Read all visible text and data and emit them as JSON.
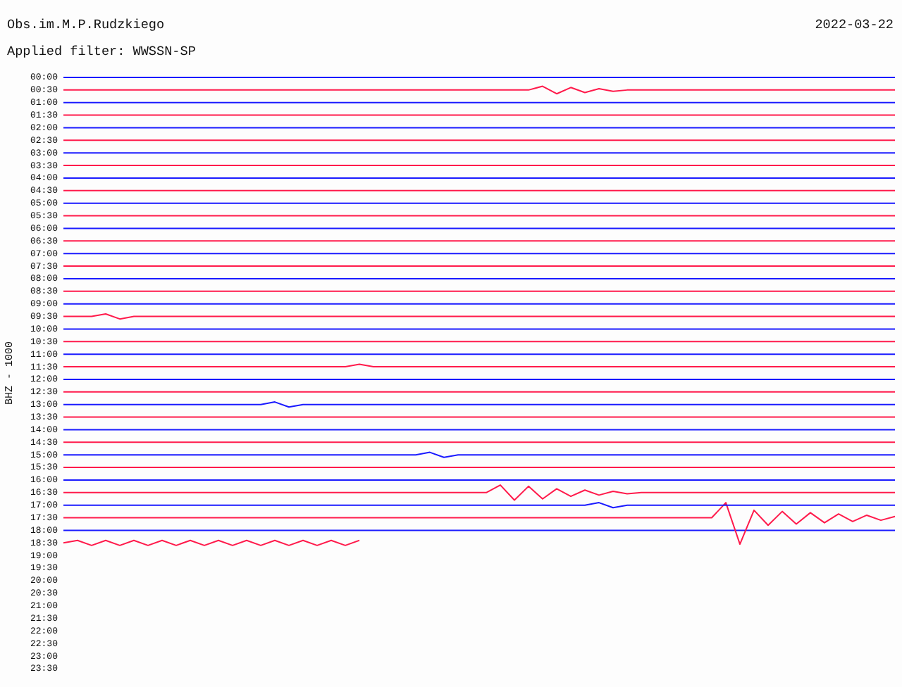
{
  "chart_data": {
    "type": "line",
    "title": "Obs.im.M.P.Rudzkiego",
    "subtitle": "Applied filter: WWSSN-SP",
    "ylabel": "BHZ - 1000",
    "annotations": [
      "2022-03-22"
    ],
    "categories": [
      null,
      null,
      null,
      null,
      null,
      null,
      null,
      null,
      null,
      null,
      null,
      null,
      null,
      null,
      null,
      null,
      null,
      null,
      null,
      null,
      null,
      null,
      null,
      null,
      null,
      null,
      null,
      null,
      null,
      null,
      null,
      null,
      null,
      null,
      null,
      null,
      null,
      null,
      null,
      null,
      null,
      null,
      null,
      null,
      null,
      null,
      null,
      null,
      null,
      null,
      null,
      null,
      null,
      null,
      null,
      null,
      null,
      null,
      null,
      null
    ],
    "ylim": [
      23.5,
      0
    ],
    "yticks": [
      {
        "value": 0,
        "label": "00:00"
      },
      {
        "value": 0.5,
        "label": "00:30"
      },
      {
        "value": 1,
        "label": "01:00"
      },
      {
        "value": 1.5,
        "label": "01:30"
      },
      {
        "value": 2,
        "label": "02:00"
      },
      {
        "value": 2.5,
        "label": "02:30"
      },
      {
        "value": 3,
        "label": "03:00"
      },
      {
        "value": 3.5,
        "label": "03:30"
      },
      {
        "value": 4,
        "label": "04:00"
      },
      {
        "value": 4.5,
        "label": "04:30"
      },
      {
        "value": 5,
        "label": "05:00"
      },
      {
        "value": 5.5,
        "label": "05:30"
      },
      {
        "value": 6,
        "label": "06:00"
      },
      {
        "value": 6.5,
        "label": "06:30"
      },
      {
        "value": 7,
        "label": "07:00"
      },
      {
        "value": 7.5,
        "label": "07:30"
      },
      {
        "value": 8,
        "label": "08:00"
      },
      {
        "value": 8.5,
        "label": "08:30"
      },
      {
        "value": 9,
        "label": "09:00"
      },
      {
        "value": 9.5,
        "label": "09:30"
      },
      {
        "value": 10,
        "label": "10:00"
      },
      {
        "value": 10.5,
        "label": "10:30"
      },
      {
        "value": 11,
        "label": "11:00"
      },
      {
        "value": 11.5,
        "label": "11:30"
      },
      {
        "value": 12,
        "label": "12:00"
      },
      {
        "value": 12.5,
        "label": "12:30"
      },
      {
        "value": 13,
        "label": "13:00"
      },
      {
        "value": 13.5,
        "label": "13:30"
      },
      {
        "value": 14,
        "label": "14:00"
      },
      {
        "value": 14.5,
        "label": "14:30"
      },
      {
        "value": 15,
        "label": "15:00"
      },
      {
        "value": 15.5,
        "label": "15:30"
      },
      {
        "value": 16,
        "label": "16:00"
      },
      {
        "value": 16.5,
        "label": "16:30"
      },
      {
        "value": 17,
        "label": "17:00"
      },
      {
        "value": 17.5,
        "label": "17:30"
      },
      {
        "value": 18,
        "label": "18:00"
      },
      {
        "value": 18.5,
        "label": "18:30"
      },
      {
        "value": 19,
        "label": "19:00"
      },
      {
        "value": 19.5,
        "label": "19:30"
      },
      {
        "value": 20,
        "label": "20:00"
      },
      {
        "value": 20.5,
        "label": "20:30"
      },
      {
        "value": 21,
        "label": "21:00"
      },
      {
        "value": 21.5,
        "label": "21:30"
      },
      {
        "value": 22,
        "label": "22:00"
      },
      {
        "value": 22.5,
        "label": "22:30"
      },
      {
        "value": 23,
        "label": "23:00"
      },
      {
        "value": 23.5,
        "label": "23:30"
      }
    ],
    "tick_labels": "y",
    "grid": false,
    "legend": false,
    "series": [
      {
        "color": "#1a1aff",
        "values": [
          0,
          0,
          0,
          0,
          0,
          0,
          0,
          0,
          0,
          0,
          0,
          0,
          0,
          0,
          0,
          0,
          0,
          0,
          0,
          0,
          0,
          0,
          0,
          0,
          0,
          0,
          0,
          0,
          0,
          0,
          0,
          0,
          0,
          0,
          0,
          0,
          0,
          0,
          0,
          0,
          0,
          0,
          0,
          0,
          0,
          0,
          0,
          0,
          0,
          0,
          0,
          0,
          0,
          0,
          0,
          0,
          0,
          0,
          0,
          0
        ]
      },
      {
        "color": "#ff1a4b",
        "values": [
          0.5,
          0.5,
          0.5,
          0.5,
          0.5,
          0.5,
          0.5,
          0.5,
          0.5,
          0.5,
          0.5,
          0.5,
          0.5,
          0.5,
          0.5,
          0.5,
          0.5,
          0.5,
          0.5,
          0.5,
          0.5,
          0.5,
          0.5,
          0.5,
          0.5,
          0.5,
          0.5,
          0.5,
          0.5,
          0.5,
          0.5,
          0.5,
          0.5,
          0.5,
          0.35,
          0.65,
          0.4,
          0.6,
          0.45,
          0.55,
          0.5,
          0.5,
          0.5,
          0.5,
          0.5,
          0.5,
          0.5,
          0.5,
          0.5,
          0.5,
          0.5,
          0.5,
          0.5,
          0.5,
          0.5,
          0.5,
          0.5,
          0.5,
          0.5,
          0.5
        ]
      },
      {
        "color": "#1a1aff",
        "values": [
          1,
          1,
          1,
          1,
          1,
          1,
          1,
          1,
          1,
          1,
          1,
          1,
          1,
          1,
          1,
          1,
          1,
          1,
          1,
          1,
          1,
          1,
          1,
          1,
          1,
          1,
          1,
          1,
          1,
          1,
          1,
          1,
          1,
          1,
          1,
          1,
          1,
          1,
          1,
          1,
          1,
          1,
          1,
          1,
          1,
          1,
          1,
          1,
          1,
          1,
          1,
          1,
          1,
          1,
          1,
          1,
          1,
          1,
          1,
          1
        ]
      },
      {
        "color": "#ff1a4b",
        "values": [
          1.5,
          1.5,
          1.5,
          1.5,
          1.5,
          1.5,
          1.5,
          1.5,
          1.5,
          1.5,
          1.5,
          1.5,
          1.5,
          1.5,
          1.5,
          1.5,
          1.5,
          1.5,
          1.5,
          1.5,
          1.5,
          1.5,
          1.5,
          1.5,
          1.5,
          1.5,
          1.5,
          1.5,
          1.5,
          1.5,
          1.5,
          1.5,
          1.5,
          1.5,
          1.5,
          1.5,
          1.5,
          1.5,
          1.5,
          1.5,
          1.5,
          1.5,
          1.5,
          1.5,
          1.5,
          1.5,
          1.5,
          1.5,
          1.5,
          1.5,
          1.5,
          1.5,
          1.5,
          1.5,
          1.5,
          1.5,
          1.5,
          1.5,
          1.5,
          1.5
        ]
      },
      {
        "color": "#1a1aff",
        "values": [
          2,
          2,
          2,
          2,
          2,
          2,
          2,
          2,
          2,
          2,
          2,
          2,
          2,
          2,
          2,
          2,
          2,
          2,
          2,
          2,
          2,
          2,
          2,
          2,
          2,
          2,
          2,
          2,
          2,
          2,
          2,
          2,
          2,
          2,
          2,
          2,
          2,
          2,
          2,
          2,
          2,
          2,
          2,
          2,
          2,
          2,
          2,
          2,
          2,
          2,
          2,
          2,
          2,
          2,
          2,
          2,
          2,
          2,
          2,
          2
        ]
      },
      {
        "color": "#ff1a4b",
        "values": [
          2.5,
          2.5,
          2.5,
          2.5,
          2.5,
          2.5,
          2.5,
          2.5,
          2.5,
          2.5,
          2.5,
          2.5,
          2.5,
          2.5,
          2.5,
          2.5,
          2.5,
          2.5,
          2.5,
          2.5,
          2.5,
          2.5,
          2.5,
          2.5,
          2.5,
          2.5,
          2.5,
          2.5,
          2.5,
          2.5,
          2.5,
          2.5,
          2.5,
          2.5,
          2.5,
          2.5,
          2.5,
          2.5,
          2.5,
          2.5,
          2.5,
          2.5,
          2.5,
          2.5,
          2.5,
          2.5,
          2.5,
          2.5,
          2.5,
          2.5,
          2.5,
          2.5,
          2.5,
          2.5,
          2.5,
          2.5,
          2.5,
          2.5,
          2.5,
          2.5
        ]
      },
      {
        "color": "#1a1aff",
        "values": [
          3,
          3,
          3,
          3,
          3,
          3,
          3,
          3,
          3,
          3,
          3,
          3,
          3,
          3,
          3,
          3,
          3,
          3,
          3,
          3,
          3,
          3,
          3,
          3,
          3,
          3,
          3,
          3,
          3,
          3,
          3,
          3,
          3,
          3,
          3,
          3,
          3,
          3,
          3,
          3,
          3,
          3,
          3,
          3,
          3,
          3,
          3,
          3,
          3,
          3,
          3,
          3,
          3,
          3,
          3,
          3,
          3,
          3,
          3,
          3
        ]
      },
      {
        "color": "#ff1a4b",
        "values": [
          3.5,
          3.5,
          3.5,
          3.5,
          3.5,
          3.5,
          3.5,
          3.5,
          3.5,
          3.5,
          3.5,
          3.5,
          3.5,
          3.5,
          3.5,
          3.5,
          3.5,
          3.5,
          3.5,
          3.5,
          3.5,
          3.5,
          3.5,
          3.5,
          3.5,
          3.5,
          3.5,
          3.5,
          3.5,
          3.5,
          3.5,
          3.5,
          3.5,
          3.5,
          3.5,
          3.5,
          3.5,
          3.5,
          3.5,
          3.5,
          3.5,
          3.5,
          3.5,
          3.5,
          3.5,
          3.5,
          3.5,
          3.5,
          3.5,
          3.5,
          3.5,
          3.5,
          3.5,
          3.5,
          3.5,
          3.5,
          3.5,
          3.5,
          3.5,
          3.5
        ]
      },
      {
        "color": "#1a1aff",
        "values": [
          4,
          4,
          4,
          4,
          4,
          4,
          4,
          4,
          4,
          4,
          4,
          4,
          4,
          4,
          4,
          4,
          4,
          4,
          4,
          4,
          4,
          4,
          4,
          4,
          4,
          4,
          4,
          4,
          4,
          4,
          4,
          4,
          4,
          4,
          4,
          4,
          4,
          4,
          4,
          4,
          4,
          4,
          4,
          4,
          4,
          4,
          4,
          4,
          4,
          4,
          4,
          4,
          4,
          4,
          4,
          4,
          4,
          4,
          4,
          4
        ]
      },
      {
        "color": "#ff1a4b",
        "values": [
          4.5,
          4.5,
          4.5,
          4.5,
          4.5,
          4.5,
          4.5,
          4.5,
          4.5,
          4.5,
          4.5,
          4.5,
          4.5,
          4.5,
          4.5,
          4.5,
          4.5,
          4.5,
          4.5,
          4.5,
          4.5,
          4.5,
          4.5,
          4.5,
          4.5,
          4.5,
          4.5,
          4.5,
          4.5,
          4.5,
          4.5,
          4.5,
          4.5,
          4.5,
          4.5,
          4.5,
          4.5,
          4.5,
          4.5,
          4.5,
          4.5,
          4.5,
          4.5,
          4.5,
          4.5,
          4.5,
          4.5,
          4.5,
          4.5,
          4.5,
          4.5,
          4.5,
          4.5,
          4.5,
          4.5,
          4.5,
          4.5,
          4.5,
          4.5,
          4.5
        ]
      },
      {
        "color": "#1a1aff",
        "values": [
          5,
          5,
          5,
          5,
          5,
          5,
          5,
          5,
          5,
          5,
          5,
          5,
          5,
          5,
          5,
          5,
          5,
          5,
          5,
          5,
          5,
          5,
          5,
          5,
          5,
          5,
          5,
          5,
          5,
          5,
          5,
          5,
          5,
          5,
          5,
          5,
          5,
          5,
          5,
          5,
          5,
          5,
          5,
          5,
          5,
          5,
          5,
          5,
          5,
          5,
          5,
          5,
          5,
          5,
          5,
          5,
          5,
          5,
          5,
          5
        ]
      },
      {
        "color": "#ff1a4b",
        "values": [
          5.5,
          5.5,
          5.5,
          5.5,
          5.5,
          5.5,
          5.5,
          5.5,
          5.5,
          5.5,
          5.5,
          5.5,
          5.5,
          5.5,
          5.5,
          5.5,
          5.5,
          5.5,
          5.5,
          5.5,
          5.5,
          5.5,
          5.5,
          5.5,
          5.5,
          5.5,
          5.5,
          5.5,
          5.5,
          5.5,
          5.5,
          5.5,
          5.5,
          5.5,
          5.5,
          5.5,
          5.5,
          5.5,
          5.5,
          5.5,
          5.5,
          5.5,
          5.5,
          5.5,
          5.5,
          5.5,
          5.5,
          5.5,
          5.5,
          5.5,
          5.5,
          5.5,
          5.5,
          5.5,
          5.5,
          5.5,
          5.5,
          5.5,
          5.5,
          5.5
        ]
      },
      {
        "color": "#1a1aff",
        "values": [
          6,
          6,
          6,
          6,
          6,
          6,
          6,
          6,
          6,
          6,
          6,
          6,
          6,
          6,
          6,
          6,
          6,
          6,
          6,
          6,
          6,
          6,
          6,
          6,
          6,
          6,
          6,
          6,
          6,
          6,
          6,
          6,
          6,
          6,
          6,
          6,
          6,
          6,
          6,
          6,
          6,
          6,
          6,
          6,
          6,
          6,
          6,
          6,
          6,
          6,
          6,
          6,
          6,
          6,
          6,
          6,
          6,
          6,
          6,
          6
        ]
      },
      {
        "color": "#ff1a4b",
        "values": [
          6.5,
          6.5,
          6.5,
          6.5,
          6.5,
          6.5,
          6.5,
          6.5,
          6.5,
          6.5,
          6.5,
          6.5,
          6.5,
          6.5,
          6.5,
          6.5,
          6.5,
          6.5,
          6.5,
          6.5,
          6.5,
          6.5,
          6.5,
          6.5,
          6.5,
          6.5,
          6.5,
          6.5,
          6.5,
          6.5,
          6.5,
          6.5,
          6.5,
          6.5,
          6.5,
          6.5,
          6.5,
          6.5,
          6.5,
          6.5,
          6.5,
          6.5,
          6.5,
          6.5,
          6.5,
          6.5,
          6.5,
          6.5,
          6.5,
          6.5,
          6.5,
          6.5,
          6.5,
          6.5,
          6.5,
          6.5,
          6.5,
          6.5,
          6.5,
          6.5
        ]
      },
      {
        "color": "#1a1aff",
        "values": [
          7,
          7,
          7,
          7,
          7,
          7,
          7,
          7,
          7,
          7,
          7,
          7,
          7,
          7,
          7,
          7,
          7,
          7,
          7,
          7,
          7,
          7,
          7,
          7,
          7,
          7,
          7,
          7,
          7,
          7,
          7,
          7,
          7,
          7,
          7,
          7,
          7,
          7,
          7,
          7,
          7,
          7,
          7,
          7,
          7,
          7,
          7,
          7,
          7,
          7,
          7,
          7,
          7,
          7,
          7,
          7,
          7,
          7,
          7,
          7
        ]
      },
      {
        "color": "#ff1a4b",
        "values": [
          7.5,
          7.5,
          7.5,
          7.5,
          7.5,
          7.5,
          7.5,
          7.5,
          7.5,
          7.5,
          7.5,
          7.5,
          7.5,
          7.5,
          7.5,
          7.5,
          7.5,
          7.5,
          7.5,
          7.5,
          7.5,
          7.5,
          7.5,
          7.5,
          7.5,
          7.5,
          7.5,
          7.5,
          7.5,
          7.5,
          7.5,
          7.5,
          7.5,
          7.5,
          7.5,
          7.5,
          7.5,
          7.5,
          7.5,
          7.5,
          7.5,
          7.5,
          7.5,
          7.5,
          7.5,
          7.5,
          7.5,
          7.5,
          7.5,
          7.5,
          7.5,
          7.5,
          7.5,
          7.5,
          7.5,
          7.5,
          7.5,
          7.5,
          7.5,
          7.5
        ]
      },
      {
        "color": "#1a1aff",
        "values": [
          8,
          8,
          8,
          8,
          8,
          8,
          8,
          8,
          8,
          8,
          8,
          8,
          8,
          8,
          8,
          8,
          8,
          8,
          8,
          8,
          8,
          8,
          8,
          8,
          8,
          8,
          8,
          8,
          8,
          8,
          8,
          8,
          8,
          8,
          8,
          8,
          8,
          8,
          8,
          8,
          8,
          8,
          8,
          8,
          8,
          8,
          8,
          8,
          8,
          8,
          8,
          8,
          8,
          8,
          8,
          8,
          8,
          8,
          8,
          8
        ]
      },
      {
        "color": "#ff1a4b",
        "values": [
          8.5,
          8.5,
          8.5,
          8.5,
          8.5,
          8.5,
          8.5,
          8.5,
          8.5,
          8.5,
          8.5,
          8.5,
          8.5,
          8.5,
          8.5,
          8.5,
          8.5,
          8.5,
          8.5,
          8.5,
          8.5,
          8.5,
          8.5,
          8.5,
          8.5,
          8.5,
          8.5,
          8.5,
          8.5,
          8.5,
          8.5,
          8.5,
          8.5,
          8.5,
          8.5,
          8.5,
          8.5,
          8.5,
          8.5,
          8.5,
          8.5,
          8.5,
          8.5,
          8.5,
          8.5,
          8.5,
          8.5,
          8.5,
          8.5,
          8.5,
          8.5,
          8.5,
          8.5,
          8.5,
          8.5,
          8.5,
          8.5,
          8.5,
          8.5,
          8.5
        ]
      },
      {
        "color": "#1a1aff",
        "values": [
          9,
          9,
          9,
          9,
          9,
          9,
          9,
          9,
          9,
          9,
          9,
          9,
          9,
          9,
          9,
          9,
          9,
          9,
          9,
          9,
          9,
          9,
          9,
          9,
          9,
          9,
          9,
          9,
          9,
          9,
          9,
          9,
          9,
          9,
          9,
          9,
          9,
          9,
          9,
          9,
          9,
          9,
          9,
          9,
          9,
          9,
          9,
          9,
          9,
          9,
          9,
          9,
          9,
          9,
          9,
          9,
          9,
          9,
          9,
          9
        ]
      },
      {
        "color": "#ff1a4b",
        "values": [
          9.5,
          9.5,
          9.5,
          9.4,
          9.6,
          9.5,
          9.5,
          9.5,
          9.5,
          9.5,
          9.5,
          9.5,
          9.5,
          9.5,
          9.5,
          9.5,
          9.5,
          9.5,
          9.5,
          9.5,
          9.5,
          9.5,
          9.5,
          9.5,
          9.5,
          9.5,
          9.5,
          9.5,
          9.5,
          9.5,
          9.5,
          9.5,
          9.5,
          9.5,
          9.5,
          9.5,
          9.5,
          9.5,
          9.5,
          9.5,
          9.5,
          9.5,
          9.5,
          9.5,
          9.5,
          9.5,
          9.5,
          9.5,
          9.5,
          9.5,
          9.5,
          9.5,
          9.5,
          9.5,
          9.5,
          9.5,
          9.5,
          9.5,
          9.5,
          9.5
        ]
      },
      {
        "color": "#1a1aff",
        "values": [
          10,
          10,
          10,
          10,
          10,
          10,
          10,
          10,
          10,
          10,
          10,
          10,
          10,
          10,
          10,
          10,
          10,
          10,
          10,
          10,
          10,
          10,
          10,
          10,
          10,
          10,
          10,
          10,
          10,
          10,
          10,
          10,
          10,
          10,
          10,
          10,
          10,
          10,
          10,
          10,
          10,
          10,
          10,
          10,
          10,
          10,
          10,
          10,
          10,
          10,
          10,
          10,
          10,
          10,
          10,
          10,
          10,
          10,
          10,
          10
        ]
      },
      {
        "color": "#ff1a4b",
        "values": [
          10.5,
          10.5,
          10.5,
          10.5,
          10.5,
          10.5,
          10.5,
          10.5,
          10.5,
          10.5,
          10.5,
          10.5,
          10.5,
          10.5,
          10.5,
          10.5,
          10.5,
          10.5,
          10.5,
          10.5,
          10.5,
          10.5,
          10.5,
          10.5,
          10.5,
          10.5,
          10.5,
          10.5,
          10.5,
          10.5,
          10.5,
          10.5,
          10.5,
          10.5,
          10.5,
          10.5,
          10.5,
          10.5,
          10.5,
          10.5,
          10.5,
          10.5,
          10.5,
          10.5,
          10.5,
          10.5,
          10.5,
          10.5,
          10.5,
          10.5,
          10.5,
          10.5,
          10.5,
          10.5,
          10.5,
          10.5,
          10.5,
          10.5,
          10.5,
          10.5
        ]
      },
      {
        "color": "#1a1aff",
        "values": [
          11,
          11,
          11,
          11,
          11,
          11,
          11,
          11,
          11,
          11,
          11,
          11,
          11,
          11,
          11,
          11,
          11,
          11,
          11,
          11,
          11,
          11,
          11,
          11,
          11,
          11,
          11,
          11,
          11,
          11,
          11,
          11,
          11,
          11,
          11,
          11,
          11,
          11,
          11,
          11,
          11,
          11,
          11,
          11,
          11,
          11,
          11,
          11,
          11,
          11,
          11,
          11,
          11,
          11,
          11,
          11,
          11,
          11,
          11,
          11
        ]
      },
      {
        "color": "#ff1a4b",
        "values": [
          11.5,
          11.5,
          11.5,
          11.5,
          11.5,
          11.5,
          11.5,
          11.5,
          11.5,
          11.5,
          11.5,
          11.5,
          11.5,
          11.5,
          11.5,
          11.5,
          11.5,
          11.5,
          11.5,
          11.5,
          11.5,
          11.4,
          11.5,
          11.5,
          11.5,
          11.5,
          11.5,
          11.5,
          11.5,
          11.5,
          11.5,
          11.5,
          11.5,
          11.5,
          11.5,
          11.5,
          11.5,
          11.5,
          11.5,
          11.5,
          11.5,
          11.5,
          11.5,
          11.5,
          11.5,
          11.5,
          11.5,
          11.5,
          11.5,
          11.5,
          11.5,
          11.5,
          11.5,
          11.5,
          11.5,
          11.5,
          11.5,
          11.5,
          11.5,
          11.5
        ]
      },
      {
        "color": "#1a1aff",
        "values": [
          12,
          12,
          12,
          12,
          12,
          12,
          12,
          12,
          12,
          12,
          12,
          12,
          12,
          12,
          12,
          12,
          12,
          12,
          12,
          12,
          12,
          12,
          12,
          12,
          12,
          12,
          12,
          12,
          12,
          12,
          12,
          12,
          12,
          12,
          12,
          12,
          12,
          12,
          12,
          12,
          12,
          12,
          12,
          12,
          12,
          12,
          12,
          12,
          12,
          12,
          12,
          12,
          12,
          12,
          12,
          12,
          12,
          12,
          12,
          12
        ]
      },
      {
        "color": "#ff1a4b",
        "values": [
          12.5,
          12.5,
          12.5,
          12.5,
          12.5,
          12.5,
          12.5,
          12.5,
          12.5,
          12.5,
          12.5,
          12.5,
          12.5,
          12.5,
          12.5,
          12.5,
          12.5,
          12.5,
          12.5,
          12.5,
          12.5,
          12.5,
          12.5,
          12.5,
          12.5,
          12.5,
          12.5,
          12.5,
          12.5,
          12.5,
          12.5,
          12.5,
          12.5,
          12.5,
          12.5,
          12.5,
          12.5,
          12.5,
          12.5,
          12.5,
          12.5,
          12.5,
          12.5,
          12.5,
          12.5,
          12.5,
          12.5,
          12.5,
          12.5,
          12.5,
          12.5,
          12.5,
          12.5,
          12.5,
          12.5,
          12.5,
          12.5,
          12.5,
          12.5,
          12.5
        ]
      },
      {
        "color": "#1a1aff",
        "values": [
          13,
          13,
          13,
          13,
          13,
          13,
          13,
          13,
          13,
          13,
          13,
          13,
          13,
          13,
          13,
          12.9,
          13.1,
          13,
          13,
          13,
          13,
          13,
          13,
          13,
          13,
          13,
          13,
          13,
          13,
          13,
          13,
          13,
          13,
          13,
          13,
          13,
          13,
          13,
          13,
          13,
          13,
          13,
          13,
          13,
          13,
          13,
          13,
          13,
          13,
          13,
          13,
          13,
          13,
          13,
          13,
          13,
          13,
          13,
          13,
          13
        ]
      },
      {
        "color": "#ff1a4b",
        "values": [
          13.5,
          13.5,
          13.5,
          13.5,
          13.5,
          13.5,
          13.5,
          13.5,
          13.5,
          13.5,
          13.5,
          13.5,
          13.5,
          13.5,
          13.5,
          13.5,
          13.5,
          13.5,
          13.5,
          13.5,
          13.5,
          13.5,
          13.5,
          13.5,
          13.5,
          13.5,
          13.5,
          13.5,
          13.5,
          13.5,
          13.5,
          13.5,
          13.5,
          13.5,
          13.5,
          13.5,
          13.5,
          13.5,
          13.5,
          13.5,
          13.5,
          13.5,
          13.5,
          13.5,
          13.5,
          13.5,
          13.5,
          13.5,
          13.5,
          13.5,
          13.5,
          13.5,
          13.5,
          13.5,
          13.5,
          13.5,
          13.5,
          13.5,
          13.5,
          13.5
        ]
      },
      {
        "color": "#1a1aff",
        "values": [
          14,
          14,
          14,
          14,
          14,
          14,
          14,
          14,
          14,
          14,
          14,
          14,
          14,
          14,
          14,
          14,
          14,
          14,
          14,
          14,
          14,
          14,
          14,
          14,
          14,
          14,
          14,
          14,
          14,
          14,
          14,
          14,
          14,
          14,
          14,
          14,
          14,
          14,
          14,
          14,
          14,
          14,
          14,
          14,
          14,
          14,
          14,
          14,
          14,
          14,
          14,
          14,
          14,
          14,
          14,
          14,
          14,
          14,
          14,
          14
        ]
      },
      {
        "color": "#ff1a4b",
        "values": [
          14.5,
          14.5,
          14.5,
          14.5,
          14.5,
          14.5,
          14.5,
          14.5,
          14.5,
          14.5,
          14.5,
          14.5,
          14.5,
          14.5,
          14.5,
          14.5,
          14.5,
          14.5,
          14.5,
          14.5,
          14.5,
          14.5,
          14.5,
          14.5,
          14.5,
          14.5,
          14.5,
          14.5,
          14.5,
          14.5,
          14.5,
          14.5,
          14.5,
          14.5,
          14.5,
          14.5,
          14.5,
          14.5,
          14.5,
          14.5,
          14.5,
          14.5,
          14.5,
          14.5,
          14.5,
          14.5,
          14.5,
          14.5,
          14.5,
          14.5,
          14.5,
          14.5,
          14.5,
          14.5,
          14.5,
          14.5,
          14.5,
          14.5,
          14.5,
          14.5
        ]
      },
      {
        "color": "#1a1aff",
        "values": [
          15,
          15,
          15,
          15,
          15,
          15,
          15,
          15,
          15,
          15,
          15,
          15,
          15,
          15,
          15,
          15,
          15,
          15,
          15,
          15,
          15,
          15,
          15,
          15,
          15,
          15,
          14.9,
          15.1,
          15,
          15,
          15,
          15,
          15,
          15,
          15,
          15,
          15,
          15,
          15,
          15,
          15,
          15,
          15,
          15,
          15,
          15,
          15,
          15,
          15,
          15,
          15,
          15,
          15,
          15,
          15,
          15,
          15,
          15,
          15,
          15
        ]
      },
      {
        "color": "#ff1a4b",
        "values": [
          15.5,
          15.5,
          15.5,
          15.5,
          15.5,
          15.5,
          15.5,
          15.5,
          15.5,
          15.5,
          15.5,
          15.5,
          15.5,
          15.5,
          15.5,
          15.5,
          15.5,
          15.5,
          15.5,
          15.5,
          15.5,
          15.5,
          15.5,
          15.5,
          15.5,
          15.5,
          15.5,
          15.5,
          15.5,
          15.5,
          15.5,
          15.5,
          15.5,
          15.5,
          15.5,
          15.5,
          15.5,
          15.5,
          15.5,
          15.5,
          15.5,
          15.5,
          15.5,
          15.5,
          15.5,
          15.5,
          15.5,
          15.5,
          15.5,
          15.5,
          15.5,
          15.5,
          15.5,
          15.5,
          15.5,
          15.5,
          15.5,
          15.5,
          15.5,
          15.5
        ]
      },
      {
        "color": "#1a1aff",
        "values": [
          16,
          16,
          16,
          16,
          16,
          16,
          16,
          16,
          16,
          16,
          16,
          16,
          16,
          16,
          16,
          16,
          16,
          16,
          16,
          16,
          16,
          16,
          16,
          16,
          16,
          16,
          16,
          16,
          16,
          16,
          16,
          16,
          16,
          16,
          16,
          16,
          16,
          16,
          16,
          16,
          16,
          16,
          16,
          16,
          16,
          16,
          16,
          16,
          16,
          16,
          16,
          16,
          16,
          16,
          16,
          16,
          16,
          16,
          16,
          16
        ]
      },
      {
        "color": "#ff1a4b",
        "values": [
          16.5,
          16.5,
          16.5,
          16.5,
          16.5,
          16.5,
          16.5,
          16.5,
          16.5,
          16.5,
          16.5,
          16.5,
          16.5,
          16.5,
          16.5,
          16.5,
          16.5,
          16.5,
          16.5,
          16.5,
          16.5,
          16.5,
          16.5,
          16.5,
          16.5,
          16.5,
          16.5,
          16.5,
          16.5,
          16.5,
          16.5,
          16.2,
          16.8,
          16.25,
          16.75,
          16.35,
          16.65,
          16.4,
          16.6,
          16.45,
          16.55,
          16.5,
          16.5,
          16.5,
          16.5,
          16.5,
          16.5,
          16.5,
          16.5,
          16.5,
          16.5,
          16.5,
          16.5,
          16.5,
          16.5,
          16.5,
          16.5,
          16.5,
          16.5,
          16.5
        ]
      },
      {
        "color": "#1a1aff",
        "values": [
          17,
          17,
          17,
          17,
          17,
          17,
          17,
          17,
          17,
          17,
          17,
          17,
          17,
          17,
          17,
          17,
          17,
          17,
          17,
          17,
          17,
          17,
          17,
          17,
          17,
          17,
          17,
          17,
          17,
          17,
          17,
          17,
          17,
          17,
          17,
          17,
          17,
          17,
          16.9,
          17.1,
          17,
          17,
          17,
          17,
          17,
          17,
          17,
          17,
          17,
          17,
          17,
          17,
          17,
          17,
          17,
          17,
          17,
          17,
          17,
          17
        ]
      },
      {
        "color": "#ff1a4b",
        "values": [
          17.5,
          17.5,
          17.5,
          17.5,
          17.5,
          17.5,
          17.5,
          17.5,
          17.5,
          17.5,
          17.5,
          17.5,
          17.5,
          17.5,
          17.5,
          17.5,
          17.5,
          17.5,
          17.5,
          17.5,
          17.5,
          17.5,
          17.5,
          17.5,
          17.5,
          17.5,
          17.5,
          17.5,
          17.5,
          17.5,
          17.5,
          17.5,
          17.5,
          17.5,
          17.5,
          17.5,
          17.5,
          17.5,
          17.5,
          17.5,
          17.5,
          17.5,
          17.5,
          17.5,
          17.5,
          17.5,
          17.5,
          16.9,
          18.55,
          17.2,
          17.8,
          17.25,
          17.75,
          17.3,
          17.7,
          17.35,
          17.65,
          17.4,
          17.6,
          17.45
        ]
      },
      {
        "color": "#1a1aff",
        "values": [
          18,
          18,
          18,
          18,
          18,
          18,
          18,
          18,
          18,
          18,
          18,
          18,
          18,
          18,
          18,
          18,
          18,
          18,
          18,
          18,
          18,
          18,
          18,
          18,
          18,
          18,
          18,
          18,
          18,
          18,
          18,
          18,
          18,
          18,
          18,
          18,
          18,
          18,
          18,
          18,
          18,
          18,
          18,
          18,
          18,
          18,
          18,
          18,
          18,
          18,
          18,
          18,
          18,
          18,
          18,
          18,
          18,
          18,
          18,
          18
        ]
      },
      {
        "color": "#ff1a4b",
        "values": [
          18.5,
          18.4,
          18.6,
          18.4,
          18.6,
          18.4,
          18.6,
          18.4,
          18.6,
          18.4,
          18.6,
          18.4,
          18.6,
          18.4,
          18.6,
          18.4,
          18.6,
          18.4,
          18.6,
          18.4,
          18.6,
          18.4,
          null,
          null,
          null,
          null,
          null,
          null,
          null,
          null,
          null,
          null,
          null,
          null,
          null,
          null,
          null,
          null,
          null,
          null,
          null,
          null,
          null,
          null,
          null,
          null,
          null,
          null,
          null,
          null,
          null,
          null,
          null,
          null,
          null,
          null,
          null,
          null,
          null,
          null
        ]
      }
    ]
  }
}
